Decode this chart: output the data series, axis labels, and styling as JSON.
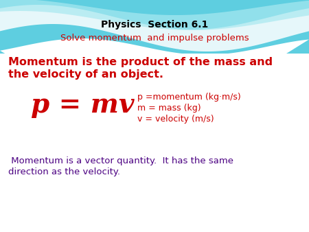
{
  "title_line1": "Physics  Section 6.1",
  "title_line2": "Solve momentum  and impulse problems",
  "title_color": "#000000",
  "subtitle_color": "#cc0000",
  "bg_color": "#ffffff",
  "bold_text_line1": "Momentum is the product of the mass and",
  "bold_text_line2": "the velocity of an object.",
  "bold_color": "#cc0000",
  "formula": "p = mv",
  "formula_color": "#cc0000",
  "def1": "p =momentum (kg·m/s)",
  "def2": "m = mass (kg)",
  "def3": "v = velocity (m/s)",
  "def_color": "#cc0000",
  "footer_line1": " Momentum is a vector quantity.  It has the same",
  "footer_line2": "direction as the velocity.",
  "footer_color": "#4b0082",
  "wave_color1": "#5ecee0",
  "wave_color2": "#a8e8f0",
  "wave_white": "#ffffff"
}
